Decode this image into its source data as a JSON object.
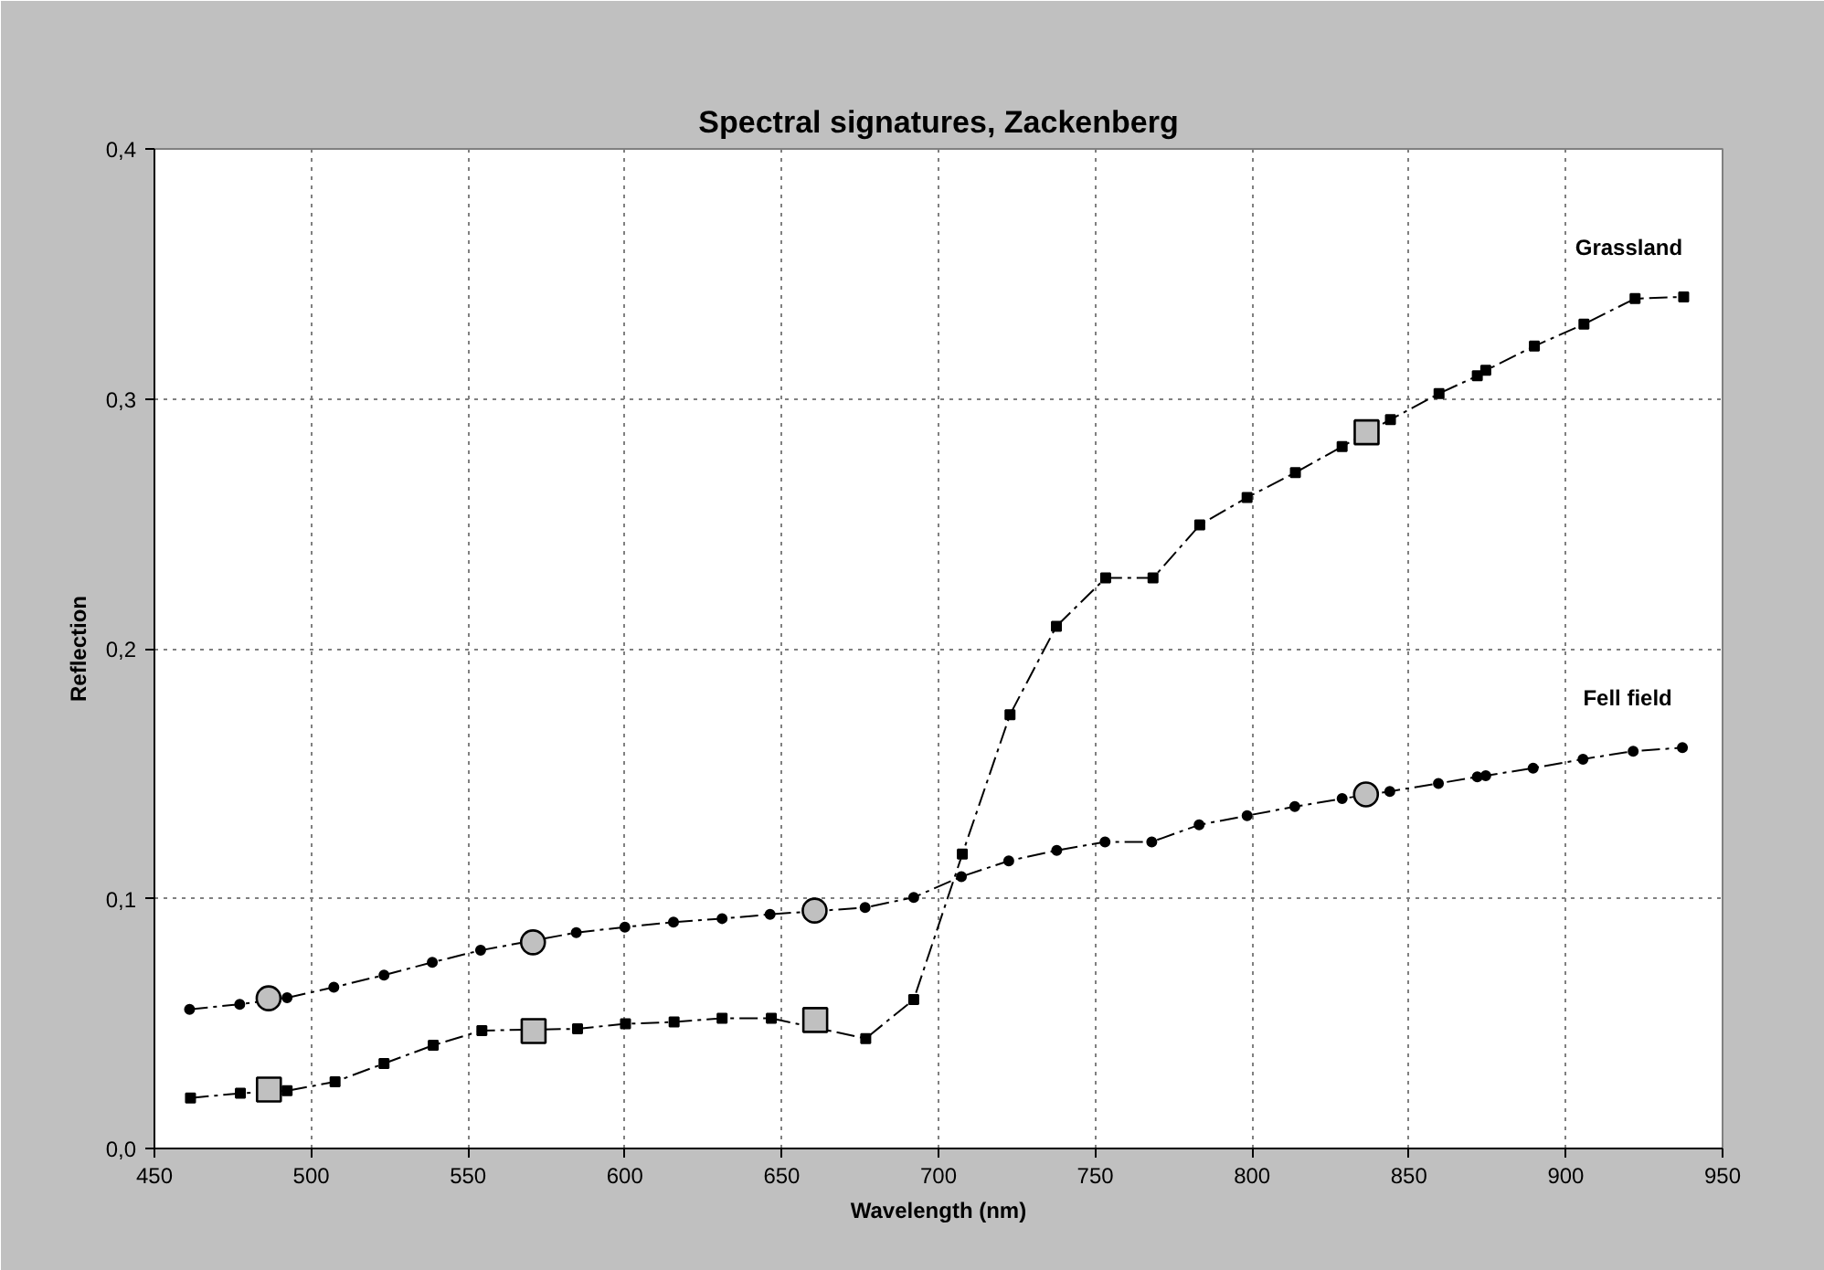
{
  "chart_data": {
    "type": "line",
    "title": "Spectral signatures, Zackenberg",
    "xlabel": "Wavelength (nm)",
    "ylabel": "Reflection",
    "xlim": [
      450,
      950
    ],
    "xticks": [
      450,
      500,
      550,
      600,
      650,
      700,
      750,
      800,
      850,
      900,
      950
    ],
    "ylim": [
      0,
      0.4
    ],
    "yticks": [
      {
        "value": 0,
        "label": "0,0"
      },
      {
        "value": 0.1,
        "label": "0,1"
      },
      {
        "value": 0.2,
        "label": "0,2"
      },
      {
        "value": 0.3,
        "label": "0,3"
      },
      {
        "value": 0.4,
        "label": "0,4"
      }
    ],
    "grid": true,
    "line_style": "dashed",
    "series": [
      {
        "name": "Grassland",
        "marker": "square",
        "color": "#000000",
        "x": [
          461.5,
          477.4,
          492.3,
          507.6,
          523.2,
          538.9,
          554.4,
          584.9,
          600.2,
          615.7,
          631.0,
          646.7,
          676.8,
          692.1,
          707.6,
          722.8,
          737.6,
          753.3,
          768.4,
          783.3,
          798.4,
          813.8,
          828.7,
          844.1,
          859.6,
          871.8,
          874.5,
          890.0,
          905.8,
          922.1,
          937.6
        ],
        "values": [
          0.0202,
          0.0221,
          0.0231,
          0.0267,
          0.034,
          0.0413,
          0.0472,
          0.0479,
          0.0499,
          0.0506,
          0.0521,
          0.0521,
          0.044,
          0.0596,
          0.1178,
          0.1736,
          0.209,
          0.2283,
          0.2283,
          0.2495,
          0.2605,
          0.2705,
          0.2809,
          0.2917,
          0.3021,
          0.3092,
          0.3114,
          0.3211,
          0.3299,
          0.3401,
          0.3408
        ]
      },
      {
        "name": "Fell field",
        "marker": "circle",
        "color": "#000000",
        "x": [
          461.2,
          477.2,
          492.3,
          507.2,
          523.2,
          538.6,
          554.0,
          584.5,
          600.0,
          615.5,
          631.0,
          646.3,
          676.6,
          692.1,
          707.3,
          722.4,
          737.7,
          753.1,
          768.0,
          783.1,
          798.4,
          813.6,
          828.7,
          843.9,
          859.4,
          871.8,
          874.5,
          889.6,
          905.5,
          921.5,
          937.2
        ],
        "values": [
          0.0557,
          0.0577,
          0.0603,
          0.0645,
          0.0694,
          0.0745,
          0.0793,
          0.0864,
          0.0886,
          0.0906,
          0.092,
          0.0937,
          0.0964,
          0.1005,
          0.1088,
          0.1151,
          0.1193,
          0.1227,
          0.1227,
          0.1295,
          0.1332,
          0.1368,
          0.14,
          0.1429,
          0.1461,
          0.1487,
          0.1492,
          0.1522,
          0.1558,
          0.159,
          0.1604
        ]
      },
      {
        "type": "scatter",
        "marker": "square",
        "color": "#c0c0c0",
        "x": [
          486.5,
          570.9,
          660.7,
          836.5
        ],
        "values": [
          0.0236,
          0.047,
          0.0514,
          0.2866
        ]
      },
      {
        "type": "scatter",
        "marker": "circle",
        "color": "#c0c0c0",
        "x": [
          486.4,
          570.7,
          660.5,
          836.3
        ],
        "values": [
          0.0601,
          0.0825,
          0.0952,
          0.1417
        ]
      }
    ]
  }
}
